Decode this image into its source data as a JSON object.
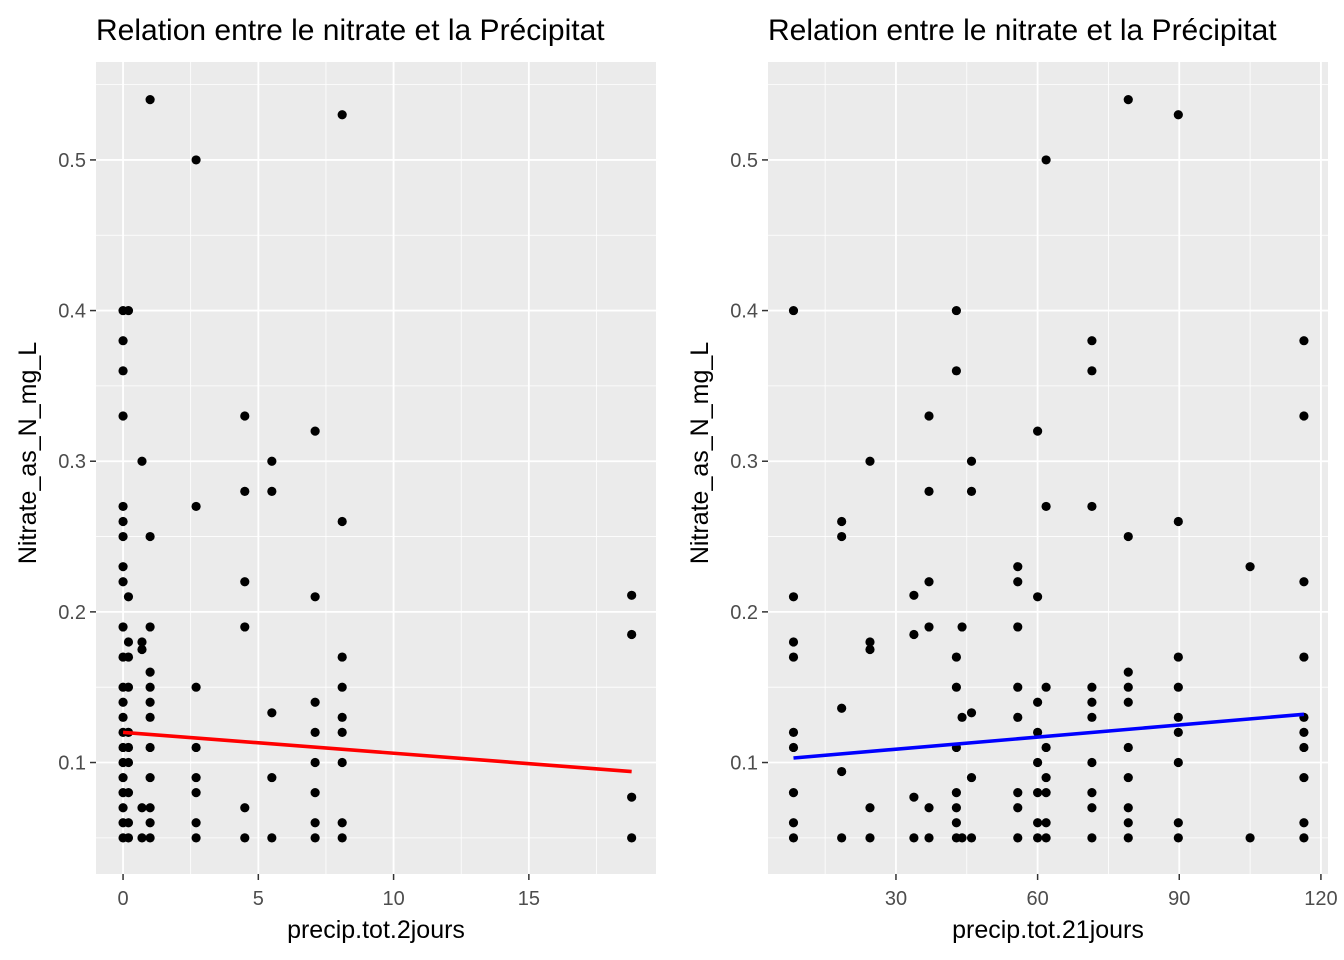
{
  "chart_data": [
    {
      "type": "scatter",
      "title": "Relation entre le nitrate et la Précipitat",
      "xlabel": "precip.tot.2jours",
      "ylabel": "Nitrate_as_N_mg_L",
      "xlim": [
        -1,
        19.7
      ],
      "ylim": [
        0.026,
        0.565
      ],
      "x_ticks": [
        0,
        5,
        10,
        15
      ],
      "x_tick_labels": [
        "0",
        "5",
        "10",
        "15"
      ],
      "y_ticks": [
        0.1,
        0.2,
        0.3,
        0.4,
        0.5
      ],
      "y_tick_labels": [
        "0.1",
        "0.2",
        "0.3",
        "0.4",
        "0.5"
      ],
      "grid": true,
      "points": [
        [
          0,
          0.4
        ],
        [
          0,
          0.38
        ],
        [
          0,
          0.36
        ],
        [
          0,
          0.33
        ],
        [
          0,
          0.27
        ],
        [
          0,
          0.26
        ],
        [
          0,
          0.25
        ],
        [
          0,
          0.23
        ],
        [
          0,
          0.22
        ],
        [
          0,
          0.19
        ],
        [
          0,
          0.17
        ],
        [
          0,
          0.15
        ],
        [
          0,
          0.14
        ],
        [
          0,
          0.13
        ],
        [
          0,
          0.12
        ],
        [
          0,
          0.11
        ],
        [
          0,
          0.1
        ],
        [
          0,
          0.09
        ],
        [
          0,
          0.08
        ],
        [
          0,
          0.07
        ],
        [
          0,
          0.06
        ],
        [
          0,
          0.05
        ],
        [
          0.2,
          0.4
        ],
        [
          0.2,
          0.21
        ],
        [
          0.2,
          0.18
        ],
        [
          0.2,
          0.17
        ],
        [
          0.2,
          0.15
        ],
        [
          0.2,
          0.12
        ],
        [
          0.2,
          0.11
        ],
        [
          0.2,
          0.1
        ],
        [
          0.2,
          0.08
        ],
        [
          0.2,
          0.06
        ],
        [
          0.2,
          0.05
        ],
        [
          0.7,
          0.3
        ],
        [
          0.7,
          0.18
        ],
        [
          0.7,
          0.175
        ],
        [
          0.7,
          0.07
        ],
        [
          0.7,
          0.05
        ],
        [
          1.0,
          0.54
        ],
        [
          1.0,
          0.25
        ],
        [
          1.0,
          0.19
        ],
        [
          1.0,
          0.16
        ],
        [
          1.0,
          0.15
        ],
        [
          1.0,
          0.14
        ],
        [
          1.0,
          0.13
        ],
        [
          1.0,
          0.11
        ],
        [
          1.0,
          0.09
        ],
        [
          1.0,
          0.07
        ],
        [
          1.0,
          0.06
        ],
        [
          1.0,
          0.05
        ],
        [
          2.7,
          0.5
        ],
        [
          2.7,
          0.27
        ],
        [
          2.7,
          0.15
        ],
        [
          2.7,
          0.11
        ],
        [
          2.7,
          0.09
        ],
        [
          2.7,
          0.08
        ],
        [
          2.7,
          0.06
        ],
        [
          2.7,
          0.05
        ],
        [
          4.5,
          0.33
        ],
        [
          4.5,
          0.28
        ],
        [
          4.5,
          0.22
        ],
        [
          4.5,
          0.19
        ],
        [
          4.5,
          0.07
        ],
        [
          4.5,
          0.05
        ],
        [
          5.5,
          0.3
        ],
        [
          5.5,
          0.28
        ],
        [
          5.5,
          0.133
        ],
        [
          5.5,
          0.09
        ],
        [
          5.5,
          0.05
        ],
        [
          7.1,
          0.32
        ],
        [
          7.1,
          0.21
        ],
        [
          7.1,
          0.14
        ],
        [
          7.1,
          0.12
        ],
        [
          7.1,
          0.1
        ],
        [
          7.1,
          0.08
        ],
        [
          7.1,
          0.06
        ],
        [
          7.1,
          0.05
        ],
        [
          8.1,
          0.53
        ],
        [
          8.1,
          0.26
        ],
        [
          8.1,
          0.17
        ],
        [
          8.1,
          0.15
        ],
        [
          8.1,
          0.13
        ],
        [
          8.1,
          0.12
        ],
        [
          8.1,
          0.1
        ],
        [
          8.1,
          0.06
        ],
        [
          8.1,
          0.05
        ],
        [
          18.8,
          0.211
        ],
        [
          18.8,
          0.185
        ],
        [
          18.8,
          0.077
        ],
        [
          18.8,
          0.05
        ]
      ],
      "trend": {
        "x": [
          0,
          18.8
        ],
        "y": [
          0.12,
          0.094
        ],
        "color": "#ff0000"
      },
      "point_color": "#000000"
    },
    {
      "type": "scatter",
      "title": "Relation entre le nitrate et la Précipitat",
      "xlabel": "precip.tot.21jours",
      "ylabel": "Nitrate_as_N_mg_L",
      "xlim": [
        2.9,
        121.5
      ],
      "ylim": [
        0.026,
        0.565
      ],
      "x_ticks": [
        30,
        60,
        90,
        120
      ],
      "x_tick_labels": [
        "30",
        "60",
        "90",
        "120"
      ],
      "y_ticks": [
        0.1,
        0.2,
        0.3,
        0.4,
        0.5
      ],
      "y_tick_labels": [
        "0.1",
        "0.2",
        "0.3",
        "0.4",
        "0.5"
      ],
      "grid": true,
      "points": [
        [
          8.3,
          0.4
        ],
        [
          8.3,
          0.21
        ],
        [
          8.3,
          0.18
        ],
        [
          8.3,
          0.17
        ],
        [
          8.3,
          0.12
        ],
        [
          8.3,
          0.11
        ],
        [
          8.3,
          0.08
        ],
        [
          8.3,
          0.06
        ],
        [
          8.3,
          0.05
        ],
        [
          18.5,
          0.26
        ],
        [
          18.5,
          0.25
        ],
        [
          18.5,
          0.136
        ],
        [
          18.5,
          0.094
        ],
        [
          18.5,
          0.05
        ],
        [
          24.5,
          0.3
        ],
        [
          24.5,
          0.18
        ],
        [
          24.5,
          0.175
        ],
        [
          24.5,
          0.07
        ],
        [
          24.5,
          0.05
        ],
        [
          33.8,
          0.211
        ],
        [
          33.8,
          0.185
        ],
        [
          33.8,
          0.077
        ],
        [
          33.8,
          0.05
        ],
        [
          37,
          0.33
        ],
        [
          37,
          0.28
        ],
        [
          37,
          0.22
        ],
        [
          37,
          0.19
        ],
        [
          37,
          0.07
        ],
        [
          37,
          0.05
        ],
        [
          42.8,
          0.4
        ],
        [
          42.8,
          0.36
        ],
        [
          42.8,
          0.17
        ],
        [
          42.8,
          0.15
        ],
        [
          42.8,
          0.11
        ],
        [
          42.8,
          0.08
        ],
        [
          42.8,
          0.07
        ],
        [
          42.8,
          0.06
        ],
        [
          42.8,
          0.05
        ],
        [
          44,
          0.19
        ],
        [
          44,
          0.13
        ],
        [
          44,
          0.05
        ],
        [
          46,
          0.3
        ],
        [
          46,
          0.28
        ],
        [
          46,
          0.133
        ],
        [
          46,
          0.09
        ],
        [
          46,
          0.05
        ],
        [
          55.8,
          0.23
        ],
        [
          55.8,
          0.22
        ],
        [
          55.8,
          0.19
        ],
        [
          55.8,
          0.15
        ],
        [
          55.8,
          0.13
        ],
        [
          55.8,
          0.08
        ],
        [
          55.8,
          0.07
        ],
        [
          55.8,
          0.05
        ],
        [
          60,
          0.32
        ],
        [
          60,
          0.21
        ],
        [
          60,
          0.14
        ],
        [
          60,
          0.12
        ],
        [
          60,
          0.1
        ],
        [
          60,
          0.08
        ],
        [
          60,
          0.06
        ],
        [
          60,
          0.05
        ],
        [
          61.8,
          0.5
        ],
        [
          61.8,
          0.27
        ],
        [
          61.8,
          0.15
        ],
        [
          61.8,
          0.11
        ],
        [
          61.8,
          0.09
        ],
        [
          61.8,
          0.08
        ],
        [
          61.8,
          0.06
        ],
        [
          61.8,
          0.05
        ],
        [
          71.5,
          0.38
        ],
        [
          71.5,
          0.36
        ],
        [
          71.5,
          0.27
        ],
        [
          71.5,
          0.15
        ],
        [
          71.5,
          0.14
        ],
        [
          71.5,
          0.13
        ],
        [
          71.5,
          0.1
        ],
        [
          71.5,
          0.08
        ],
        [
          71.5,
          0.07
        ],
        [
          71.5,
          0.05
        ],
        [
          79.2,
          0.54
        ],
        [
          79.2,
          0.25
        ],
        [
          79.2,
          0.16
        ],
        [
          79.2,
          0.15
        ],
        [
          79.2,
          0.14
        ],
        [
          79.2,
          0.11
        ],
        [
          79.2,
          0.09
        ],
        [
          79.2,
          0.07
        ],
        [
          79.2,
          0.06
        ],
        [
          79.2,
          0.05
        ],
        [
          89.8,
          0.53
        ],
        [
          89.8,
          0.26
        ],
        [
          89.8,
          0.17
        ],
        [
          89.8,
          0.15
        ],
        [
          89.8,
          0.13
        ],
        [
          89.8,
          0.12
        ],
        [
          89.8,
          0.1
        ],
        [
          89.8,
          0.06
        ],
        [
          89.8,
          0.05
        ],
        [
          105,
          0.23
        ],
        [
          105,
          0.05
        ],
        [
          116.4,
          0.38
        ],
        [
          116.4,
          0.33
        ],
        [
          116.4,
          0.22
        ],
        [
          116.4,
          0.17
        ],
        [
          116.4,
          0.13
        ],
        [
          116.4,
          0.12
        ],
        [
          116.4,
          0.11
        ],
        [
          116.4,
          0.09
        ],
        [
          116.4,
          0.06
        ],
        [
          116.4,
          0.05
        ]
      ],
      "trend": {
        "x": [
          8.3,
          116.4
        ],
        "y": [
          0.103,
          0.132
        ],
        "color": "#0000ff"
      },
      "point_color": "#000000"
    }
  ]
}
